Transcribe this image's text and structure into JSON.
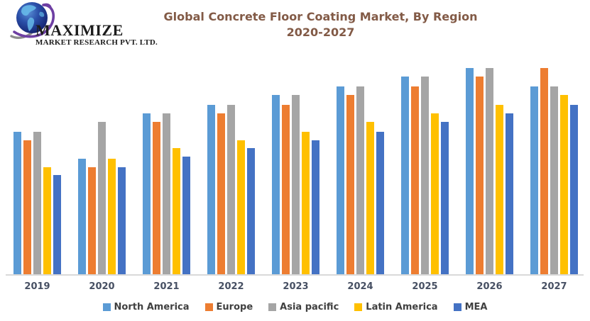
{
  "logo": {
    "line1": "MAXIMIZE",
    "line2": "MARKET RESEARCH PVT. LTD.",
    "globe_icon": "globe-with-swoosh"
  },
  "title": {
    "line1": "Global Concrete Floor Coating Market, By Region",
    "line2": "2020-2027",
    "color": "#825A46"
  },
  "chart_data": {
    "type": "bar",
    "title": "Global Concrete Floor Coating Market, By Region 2020-2027",
    "categories": [
      "2019",
      "2020",
      "2021",
      "2022",
      "2023",
      "2024",
      "2025",
      "2026",
      "2027"
    ],
    "series": [
      {
        "name": "North America",
        "color": "#5B9BD5",
        "values": [
          69,
          56,
          78,
          82,
          87,
          91,
          96,
          100,
          91
        ]
      },
      {
        "name": "Europe",
        "color": "#ED7D31",
        "values": [
          65,
          52,
          74,
          78,
          82,
          87,
          91,
          96,
          100
        ]
      },
      {
        "name": "Asia pacific",
        "color": "#A5A5A5",
        "values": [
          69,
          74,
          78,
          82,
          87,
          91,
          96,
          100,
          91
        ]
      },
      {
        "name": "Latin America",
        "color": "#FFC000",
        "values": [
          52,
          56,
          61,
          65,
          69,
          74,
          78,
          82,
          87
        ]
      },
      {
        "name": "MEA",
        "color": "#4472C4",
        "values": [
          48,
          52,
          57,
          61,
          65,
          69,
          74,
          78,
          82
        ]
      }
    ],
    "xlabel": "",
    "ylabel": "",
    "ylim": [
      0,
      100
    ],
    "value_units": "relative index; y-axis not labeled in chart, 100 = tallest bar",
    "grid": false,
    "y_axis_visible": false,
    "legend_position": "bottom",
    "axis_line_color": "#D9D9D9",
    "x_label_color": "#475063",
    "legend_text_color": "#404040"
  }
}
